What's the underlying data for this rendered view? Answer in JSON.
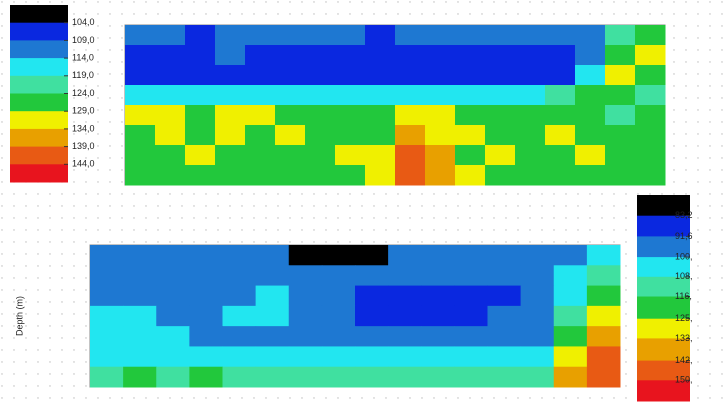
{
  "chart_data": [
    {
      "type": "heatmap",
      "colorbar": {
        "ticks": [
          {
            "value": 104,
            "label": "104,0"
          },
          {
            "value": 109,
            "label": "109,0"
          },
          {
            "value": 114,
            "label": "114,0"
          },
          {
            "value": 119,
            "label": "119,0"
          },
          {
            "value": 124,
            "label": "124,0"
          },
          {
            "value": 129,
            "label": "129,0"
          },
          {
            "value": 134,
            "label": "134,0"
          },
          {
            "value": 139,
            "label": "139,0"
          },
          {
            "value": 144,
            "label": "144,0"
          }
        ],
        "zlim": [
          99,
          149
        ],
        "colors": [
          "#000000",
          "#0a28e0",
          "#1e78d2",
          "#22e6f0",
          "#40e0a0",
          "#22c83c",
          "#f0f000",
          "#e8a000",
          "#e85a14",
          "#e8141e"
        ]
      },
      "z": [
        [
          111,
          111,
          108,
          111,
          111,
          111,
          111,
          111,
          108,
          111,
          111,
          111,
          111,
          111,
          111,
          111,
          121,
          126
        ],
        [
          106,
          106,
          106,
          111,
          106,
          106,
          106,
          106,
          106,
          106,
          106,
          106,
          106,
          106,
          106,
          113,
          126,
          131
        ],
        [
          106,
          106,
          106,
          106,
          106,
          106,
          106,
          106,
          106,
          106,
          106,
          106,
          106,
          106,
          106,
          118,
          131,
          126
        ],
        [
          116,
          116,
          116,
          116,
          116,
          116,
          116,
          116,
          116,
          116,
          116,
          116,
          116,
          116,
          121,
          126,
          126,
          121
        ],
        [
          131,
          131,
          126,
          131,
          131,
          126,
          126,
          126,
          126,
          131,
          131,
          126,
          126,
          126,
          126,
          126,
          121,
          126
        ],
        [
          126,
          131,
          126,
          131,
          126,
          131,
          126,
          126,
          126,
          136,
          131,
          131,
          126,
          126,
          131,
          126,
          126,
          126
        ],
        [
          126,
          126,
          131,
          126,
          126,
          126,
          126,
          131,
          131,
          141,
          136,
          126,
          131,
          126,
          126,
          131,
          126,
          126
        ],
        [
          126,
          126,
          126,
          126,
          126,
          126,
          126,
          126,
          131,
          141,
          136,
          131,
          126,
          126,
          126,
          126,
          126,
          126
        ]
      ]
    },
    {
      "type": "heatmap",
      "y_label": "Depth (m)",
      "colorbar": {
        "ticks": [
          {
            "value": 83.2,
            "label": "83,2"
          },
          {
            "value": 91.6,
            "label": "91,6"
          },
          {
            "value": 100,
            "label": "100,"
          },
          {
            "value": 108,
            "label": "108,"
          },
          {
            "value": 116,
            "label": "116,"
          },
          {
            "value": 125,
            "label": "125,"
          },
          {
            "value": 133,
            "label": "133,"
          },
          {
            "value": 142,
            "label": "142,"
          },
          {
            "value": 150,
            "label": "150,"
          }
        ],
        "zlim": [
          74.8,
          158.4
        ],
        "colors": [
          "#000000",
          "#0a28e0",
          "#1e78d2",
          "#22e6f0",
          "#40e0a0",
          "#22c83c",
          "#f0f000",
          "#e8a000",
          "#e85a14",
          "#e8141e"
        ]
      },
      "z": [
        [
          96,
          96,
          96,
          96,
          96,
          96,
          80,
          80,
          80,
          96,
          96,
          96,
          96,
          96,
          96,
          104
        ],
        [
          96,
          96,
          96,
          96,
          96,
          96,
          96,
          96,
          96,
          96,
          96,
          96,
          96,
          96,
          104,
          112
        ],
        [
          96,
          96,
          96,
          96,
          96,
          104,
          96,
          96,
          87,
          87,
          87,
          87,
          87,
          96,
          104,
          120
        ],
        [
          104,
          104,
          96,
          96,
          104,
          104,
          96,
          96,
          87,
          87,
          87,
          87,
          96,
          96,
          112,
          128
        ],
        [
          104,
          104,
          104,
          96,
          96,
          96,
          96,
          96,
          96,
          96,
          96,
          96,
          96,
          96,
          120,
          137
        ],
        [
          104,
          104,
          104,
          104,
          104,
          104,
          104,
          104,
          104,
          104,
          104,
          104,
          104,
          104,
          128,
          146
        ],
        [
          112,
          120,
          112,
          120,
          112,
          112,
          112,
          112,
          112,
          112,
          112,
          112,
          112,
          112,
          137,
          146
        ]
      ]
    }
  ]
}
